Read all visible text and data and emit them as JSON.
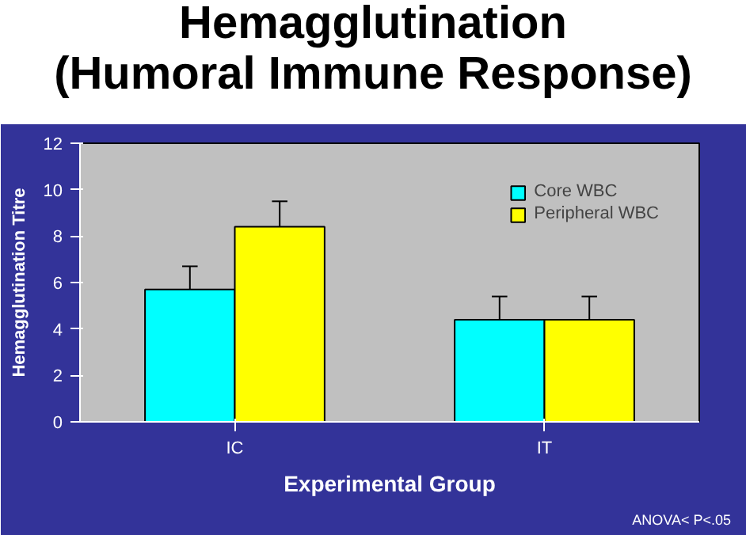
{
  "chart_data": {
    "type": "bar",
    "title": "Hemagglutination\n(Humoral Immune Response)",
    "xlabel": "Experimental Group",
    "ylabel": "Hemagglutination Titre",
    "categories": [
      "IC",
      "IT"
    ],
    "series": [
      {
        "name": "Core WBC",
        "color": "#00ffff",
        "values": [
          5.7,
          4.4
        ],
        "errors": [
          [
            5.7,
            6.7
          ],
          [
            4.4,
            5.4
          ]
        ]
      },
      {
        "name": "Peripheral WBC",
        "color": "#ffff00",
        "values": [
          8.4,
          4.4
        ],
        "errors": [
          [
            8.4,
            9.5
          ],
          [
            4.4,
            5.4
          ]
        ]
      }
    ],
    "ylim": [
      0,
      12
    ],
    "yticks": [
      0,
      2,
      4,
      6,
      8,
      10,
      12
    ],
    "grid": false,
    "legend": "top right",
    "annotations": [
      "ANOVA< P<.05"
    ]
  }
}
